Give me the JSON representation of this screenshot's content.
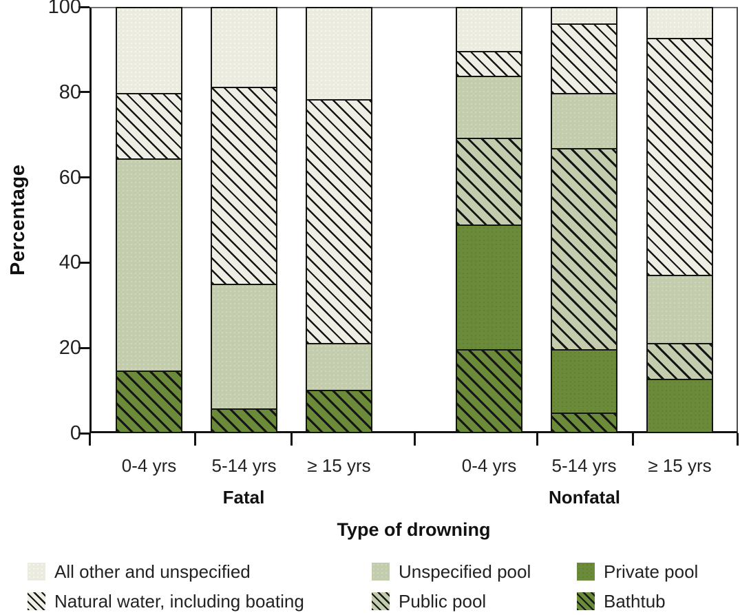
{
  "chart_data": {
    "type": "bar",
    "stacked": true,
    "ylabel": "Percentage",
    "xlabel": "Type of drowning",
    "ylim": [
      0,
      100
    ],
    "yticks": [
      0,
      20,
      40,
      60,
      80,
      100
    ],
    "group_labels": [
      "Fatal",
      "Nonfatal"
    ],
    "categories": [
      "0-4 yrs",
      "5-14 yrs",
      "≥ 15 yrs",
      "0-4 yrs",
      "5-14 yrs",
      "≥ 15 yrs"
    ],
    "stack_order_bottom_to_top": [
      "Bathtub",
      "Private pool",
      "Public pool",
      "Unspecified pool",
      "Natural water, including boating",
      "All other and unspecified"
    ],
    "series": [
      {
        "name": "Bathtub",
        "fill": "dark-green-hatch",
        "values": [
          14.5,
          5.5,
          10,
          19.5,
          4.5,
          0
        ]
      },
      {
        "name": "Private pool",
        "fill": "dark-green",
        "values": [
          0,
          0,
          0,
          29.5,
          15,
          12.5
        ]
      },
      {
        "name": "Public pool",
        "fill": "light-green-hatch",
        "values": [
          0,
          0,
          0,
          20.5,
          47.5,
          8.5
        ]
      },
      {
        "name": "Unspecified pool",
        "fill": "light-green",
        "values": [
          50,
          29.5,
          11,
          14.5,
          13,
          16
        ]
      },
      {
        "name": "Natural water, including boating",
        "fill": "beige-hatch",
        "values": [
          15.5,
          46.5,
          57.5,
          6,
          16.5,
          56
        ]
      },
      {
        "name": "All other and unspecified",
        "fill": "beige",
        "values": [
          20,
          18.5,
          21.5,
          10,
          3.5,
          7
        ]
      }
    ],
    "legend_position": "bottom"
  },
  "colors": {
    "dark_green": "#6b8a3a",
    "light_green": "#c3cdad",
    "beige": "#ecebe0",
    "hatch_line": "#151515",
    "axis": "#111111"
  },
  "legend": {
    "columns": [
      {
        "items": [
          {
            "label": "All other and unspecified",
            "fill": "beige"
          },
          {
            "label": "Natural water, including boating",
            "fill": "beige-hatch"
          }
        ]
      },
      {
        "items": [
          {
            "label": "Unspecified pool",
            "fill": "light-green"
          },
          {
            "label": "Public pool",
            "fill": "light-green-hatch"
          }
        ]
      },
      {
        "items": [
          {
            "label": "Private pool",
            "fill": "dark-green"
          },
          {
            "label": "Bathtub",
            "fill": "dark-green-hatch"
          }
        ]
      }
    ]
  }
}
